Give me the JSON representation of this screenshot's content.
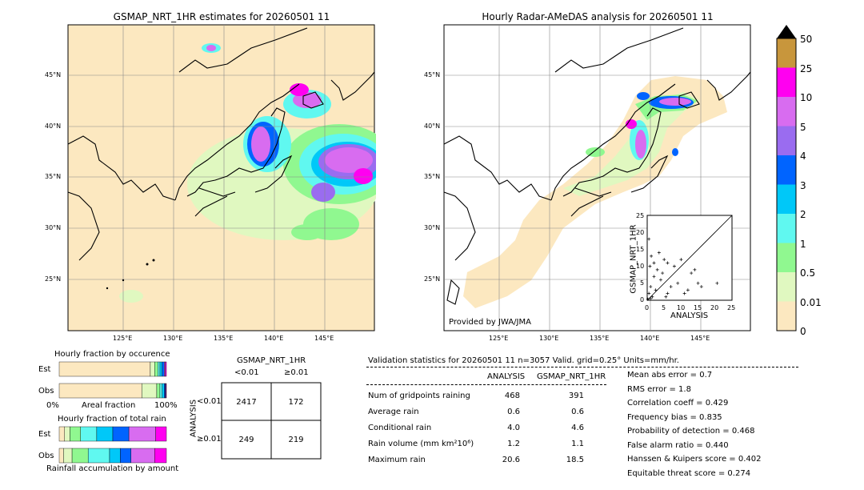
{
  "maps": [
    {
      "title": "GSMAP_NRT_1HR estimates for 20260501 11",
      "credit": ""
    },
    {
      "title": "Hourly Radar-AMeDAS analysis for 20260501 11",
      "credit": "Provided by JWA/JMA"
    }
  ],
  "lat_labels": [
    "45°N",
    "40°N",
    "35°N",
    "30°N",
    "25°N"
  ],
  "lon_labels": [
    "125°E",
    "130°E",
    "135°E",
    "140°E",
    "145°E"
  ],
  "colorbar": {
    "ticks": [
      "0",
      "0.01",
      "0.5",
      "1",
      "2",
      "3",
      "4",
      "5",
      "10",
      "25",
      "50"
    ],
    "colors": [
      "#fce8c0",
      "#e0f8c0",
      "#90f890",
      "#60f8f0",
      "#00c8f8",
      "#0064ff",
      "#9a6cf0",
      "#d86cf0",
      "#ff00f0",
      "#c8963c"
    ],
    "extend_color": "#000000"
  },
  "scatter": {
    "xlabel": "ANALYSIS",
    "ylabel": "GSMAP_NRT_1HR",
    "ticks": [
      "0",
      "5",
      "10",
      "15",
      "20",
      "25"
    ]
  },
  "fraction_occurrence": {
    "title": "Hourly fraction by occurence",
    "rows": [
      "Est",
      "Obs"
    ],
    "xlabel_left": "0%",
    "xlabel_mid": "Areal fraction",
    "xlabel_right": "100%"
  },
  "fraction_total": {
    "title": "Hourly fraction of total rain",
    "rows": [
      "Est",
      "Obs"
    ],
    "footer": "Rainfall accumulation by amount"
  },
  "contingency": {
    "title": "GSMAP_NRT_1HR",
    "col_labels": [
      "<0.01",
      "≥0.01"
    ],
    "row_labels": [
      "<0.01",
      "≥0.01"
    ],
    "side_label": "ANALYSIS",
    "cells": [
      [
        "2417",
        "172"
      ],
      [
        "249",
        "219"
      ]
    ]
  },
  "validation": {
    "header": "Validation statistics for 20260501 11  n=3057 Valid. grid=0.25° Units=mm/hr.",
    "col_headers": [
      "ANALYSIS",
      "GSMAP_NRT_1HR"
    ],
    "rows": [
      {
        "label": "Num of gridpoints raining",
        "a": "468",
        "g": "391"
      },
      {
        "label": "Average rain",
        "a": "0.6",
        "g": "0.6"
      },
      {
        "label": "Conditional rain",
        "a": "4.0",
        "g": "4.6"
      },
      {
        "label": "Rain volume (mm km²10⁶)",
        "a": "1.2",
        "g": "1.1"
      },
      {
        "label": "Maximum rain",
        "a": "20.6",
        "g": "18.5"
      }
    ],
    "scores": [
      "Mean abs error =    0.7",
      "RMS error =    1.8",
      "Correlation coeff =  0.429",
      "Frequency bias =  0.835",
      "Probability of detection =  0.468",
      "False alarm ratio =  0.440",
      "Hanssen & Kuipers score =  0.402",
      "Equitable threat score =  0.274"
    ]
  },
  "chart_data": [
    {
      "type": "heatmap",
      "title": "GSMAP_NRT_1HR estimates for 20260501 11",
      "x_ticks": [
        "125°E",
        "130°E",
        "135°E",
        "140°E",
        "145°E"
      ],
      "y_ticks": [
        "45°N",
        "40°N",
        "35°N",
        "30°N",
        "25°N"
      ],
      "legend": "colorbar right"
    },
    {
      "type": "heatmap",
      "title": "Hourly Radar-AMeDAS analysis for 20260501 11",
      "x_ticks": [
        "125°E",
        "130°E",
        "135°E",
        "140°E",
        "145°E"
      ],
      "y_ticks": [
        "45°N",
        "40°N",
        "35°N",
        "30°N",
        "25°N"
      ]
    },
    {
      "type": "scatter",
      "xlabel": "ANALYSIS",
      "ylabel": "GSMAP_NRT_1HR",
      "xlim": [
        0,
        25
      ],
      "ylim": [
        0,
        25
      ],
      "points": [
        [
          0.5,
          2
        ],
        [
          1,
          4
        ],
        [
          1.5,
          1
        ],
        [
          2,
          7
        ],
        [
          0.8,
          10
        ],
        [
          1.2,
          13
        ],
        [
          0.5,
          18
        ],
        [
          3,
          9
        ],
        [
          4,
          6
        ],
        [
          5,
          12
        ],
        [
          2.5,
          3
        ],
        [
          6,
          2
        ],
        [
          7,
          4
        ],
        [
          8,
          10
        ],
        [
          9,
          5
        ],
        [
          10,
          12
        ],
        [
          11,
          2
        ],
        [
          13,
          8
        ],
        [
          15,
          5
        ],
        [
          16,
          4
        ],
        [
          20.6,
          5
        ],
        [
          3.5,
          14
        ],
        [
          4.5,
          8
        ],
        [
          1,
          0.5
        ],
        [
          0.2,
          0.3
        ],
        [
          12,
          3
        ],
        [
          14,
          9
        ],
        [
          6,
          11
        ],
        [
          5.5,
          1
        ],
        [
          2,
          11
        ]
      ]
    },
    {
      "type": "table",
      "title": "GSMAP_NRT_1HR",
      "columns": [
        "<0.01",
        "≥0.01"
      ],
      "rows": [
        "<0.01",
        "≥0.01"
      ],
      "values": [
        [
          2417,
          172
        ],
        [
          249,
          219
        ]
      ]
    },
    {
      "type": "bar",
      "title": "Hourly fraction by occurence",
      "series": [
        {
          "name": "Est",
          "values": [
            0.85,
            0.04,
            0.03,
            0.02,
            0.02,
            0.02,
            0.01,
            0.01
          ]
        },
        {
          "name": "Obs",
          "values": [
            0.77,
            0.14,
            0.03,
            0.02,
            0.02,
            0.01,
            0.005,
            0.005
          ]
        }
      ]
    },
    {
      "type": "bar",
      "title": "Hourly fraction of total rain",
      "series": [
        {
          "name": "Est",
          "values": [
            0.05,
            0.05,
            0.1,
            0.15,
            0.15,
            0.15,
            0.25,
            0.1
          ]
        },
        {
          "name": "Obs",
          "values": [
            0.04,
            0.08,
            0.15,
            0.2,
            0.1,
            0.1,
            0.22,
            0.11
          ]
        }
      ]
    }
  ]
}
